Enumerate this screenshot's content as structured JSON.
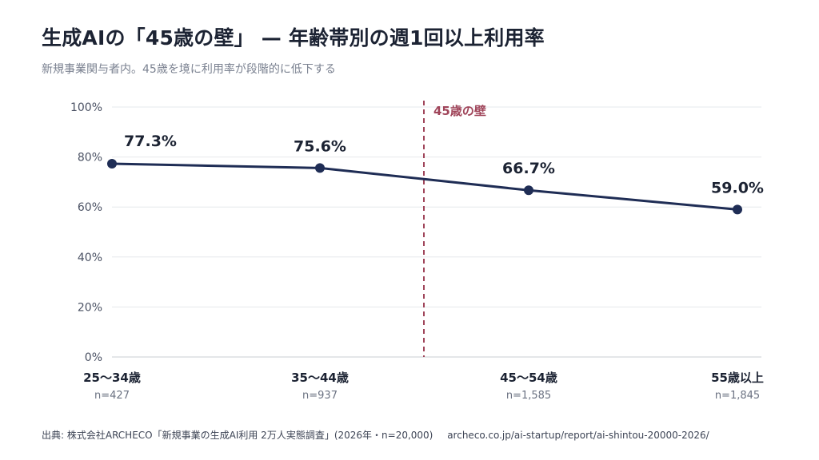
{
  "header": {
    "title": "生成AIの「45歳の壁」 — 年齢帯別の週1回以上利用率",
    "subtitle": "新規事業関与者内。45歳を境に利用率が段階的に低下する"
  },
  "footer": {
    "credit": "出典: 株式会社ARCHECO「新規事業の生成AI利用 2万人実態調査」(2026年・n=20,000)",
    "url": "archeco.co.jp/ai-startup/report/ai-shintou-20000-2026/"
  },
  "colors": {
    "line": "#1f2d55",
    "marker": "#1f2d55",
    "wall": "#a0455a",
    "grid": "#e6e8ec"
  },
  "chart_data": {
    "type": "line",
    "categories": [
      "25〜34歳",
      "35〜44歳",
      "45〜54歳",
      "55歳以上"
    ],
    "sample_sizes": [
      "n=427",
      "n=937",
      "n=1,585",
      "n=1,845"
    ],
    "values": [
      77.3,
      75.6,
      66.7,
      59.0
    ],
    "data_labels": [
      "77.3%",
      "75.6%",
      "66.7%",
      "59.0%"
    ],
    "ylim": [
      0,
      100
    ],
    "yticks": [
      0,
      20,
      40,
      60,
      80,
      100
    ],
    "ytick_labels": [
      "0%",
      "20%",
      "40%",
      "60%",
      "80%",
      "100%"
    ],
    "grid": true,
    "annotation": {
      "label": "45歳の壁",
      "between": [
        "35〜44歳",
        "45〜54歳"
      ],
      "style": "dashed vertical line"
    }
  }
}
